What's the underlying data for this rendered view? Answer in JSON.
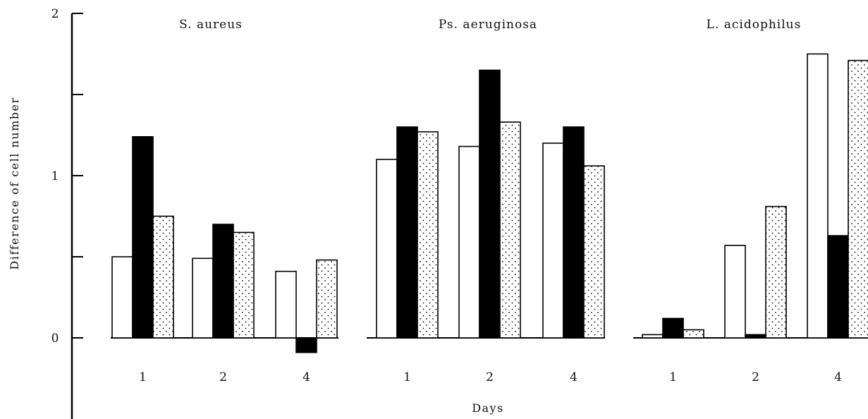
{
  "chart_data": {
    "type": "bar",
    "ylabel": "Difference of cell number",
    "xlabel": "Days",
    "ylim": [
      -0.5,
      2
    ],
    "yticks": [
      2,
      1,
      0
    ],
    "colors": {
      "open": "#ffffff",
      "solid": "#000000",
      "dotted": "#ffffff",
      "stroke": "#000000"
    },
    "panels": [
      {
        "title": "S. aureus",
        "categories": [
          "1",
          "2",
          "4"
        ],
        "series": [
          {
            "pattern": "open",
            "values": [
              0.5,
              0.49,
              0.41
            ]
          },
          {
            "pattern": "solid",
            "values": [
              1.24,
              0.7,
              -0.09
            ]
          },
          {
            "pattern": "dotted",
            "values": [
              0.75,
              0.65,
              0.48
            ]
          }
        ]
      },
      {
        "title": "Ps. aeruginosa",
        "categories": [
          "1",
          "2",
          "4"
        ],
        "series": [
          {
            "pattern": "open",
            "values": [
              1.1,
              1.18,
              1.2
            ]
          },
          {
            "pattern": "solid",
            "values": [
              1.3,
              1.65,
              1.3
            ]
          },
          {
            "pattern": "dotted",
            "values": [
              1.27,
              1.33,
              1.06
            ]
          }
        ]
      },
      {
        "title": "L. acidophilus",
        "categories": [
          "1",
          "2",
          "4"
        ],
        "series": [
          {
            "pattern": "open",
            "values": [
              0.02,
              0.57,
              1.75
            ]
          },
          {
            "pattern": "solid",
            "values": [
              0.12,
              0.02,
              0.63
            ]
          },
          {
            "pattern": "dotted",
            "values": [
              0.05,
              0.81,
              1.71
            ]
          }
        ]
      }
    ]
  }
}
